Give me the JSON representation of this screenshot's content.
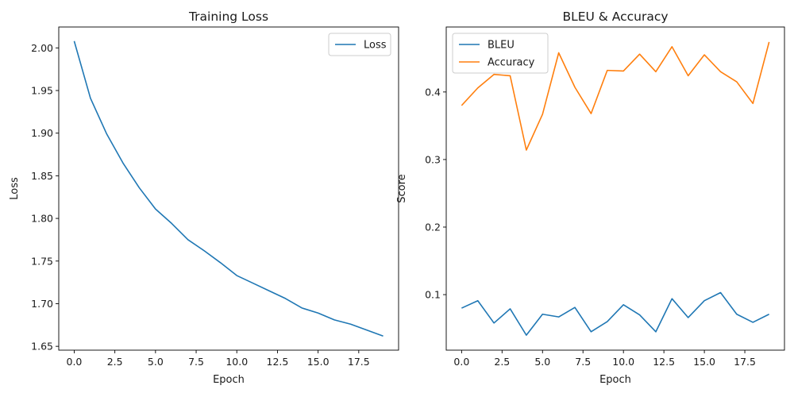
{
  "chart_data": [
    {
      "type": "line",
      "title": "Training Loss",
      "xlabel": "Epoch",
      "ylabel": "Loss",
      "xlim": [
        -0.95,
        19.95
      ],
      "ylim": [
        1.6455,
        2.0245
      ],
      "xticks": [
        0,
        2.5,
        5,
        7.5,
        10,
        12.5,
        15,
        17.5
      ],
      "xtick_labels": [
        "0.0",
        "2.5",
        "5.0",
        "7.5",
        "10.0",
        "12.5",
        "15.0",
        "17.5"
      ],
      "yticks": [
        1.65,
        1.7,
        1.75,
        1.8,
        1.85,
        1.9,
        1.95,
        2.0
      ],
      "ytick_labels": [
        "1.65",
        "1.70",
        "1.75",
        "1.80",
        "1.85",
        "1.90",
        "1.95",
        "2.00"
      ],
      "legend_position": "top-right",
      "grid": false,
      "x": [
        0,
        1,
        2,
        3,
        4,
        5,
        6,
        7,
        8,
        9,
        10,
        11,
        12,
        13,
        14,
        15,
        16,
        17,
        18,
        19
      ],
      "series": [
        {
          "name": "Loss",
          "color": "#1f77b4",
          "values": [
            2.008,
            1.941,
            1.899,
            1.865,
            1.836,
            1.811,
            1.794,
            1.775,
            1.762,
            1.748,
            1.733,
            1.724,
            1.715,
            1.706,
            1.695,
            1.689,
            1.681,
            1.676,
            1.669,
            1.662
          ]
        }
      ]
    },
    {
      "type": "line",
      "title": "BLEU & Accuracy",
      "xlabel": "Epoch",
      "ylabel": "Score",
      "xlim": [
        -0.95,
        19.95
      ],
      "ylim": [
        0.0178,
        0.4962
      ],
      "xticks": [
        0,
        2.5,
        5,
        7.5,
        10,
        12.5,
        15,
        17.5
      ],
      "xtick_labels": [
        "0.0",
        "2.5",
        "5.0",
        "7.5",
        "10.0",
        "12.5",
        "15.0",
        "17.5"
      ],
      "yticks": [
        0.1,
        0.2,
        0.3,
        0.4
      ],
      "ytick_labels": [
        "0.1",
        "0.2",
        "0.3",
        "0.4"
      ],
      "legend_position": "top-left",
      "grid": false,
      "x": [
        0,
        1,
        2,
        3,
        4,
        5,
        6,
        7,
        8,
        9,
        10,
        11,
        12,
        13,
        14,
        15,
        16,
        17,
        18,
        19
      ],
      "series": [
        {
          "name": "BLEU",
          "color": "#1f77b4",
          "values": [
            0.08,
            0.091,
            0.058,
            0.079,
            0.04,
            0.071,
            0.067,
            0.081,
            0.045,
            0.06,
            0.085,
            0.07,
            0.045,
            0.094,
            0.066,
            0.091,
            0.103,
            0.071,
            0.059,
            0.071
          ]
        },
        {
          "name": "Accuracy",
          "color": "#ff7f0e",
          "values": [
            0.38,
            0.406,
            0.426,
            0.424,
            0.314,
            0.367,
            0.458,
            0.407,
            0.368,
            0.432,
            0.431,
            0.456,
            0.43,
            0.467,
            0.424,
            0.455,
            0.43,
            0.415,
            0.383,
            0.474
          ]
        }
      ]
    }
  ]
}
